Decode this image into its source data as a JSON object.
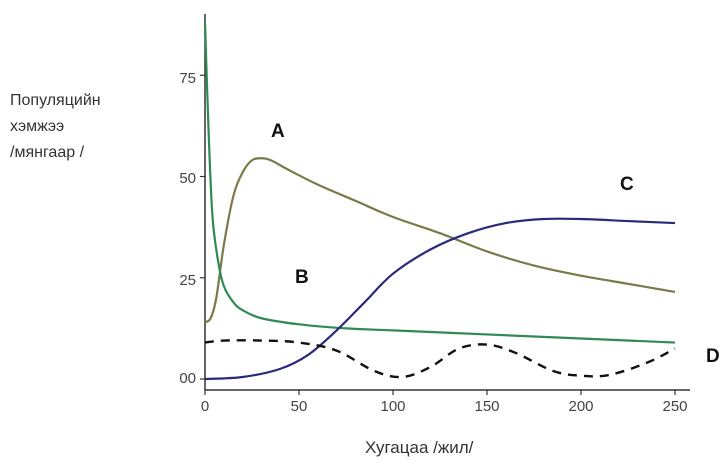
{
  "chart_data": {
    "type": "line",
    "title": "",
    "ylabel_lines": [
      "Популяцийн",
      "хэмжээ",
      "/мянгаар /"
    ],
    "xlabel": "Хугацаа /жил/",
    "xlim": [
      0,
      250
    ],
    "ylim": [
      0,
      90
    ],
    "x_ticks": [
      "0",
      "50",
      "100",
      "150",
      "200",
      "250"
    ],
    "y_ticks": [
      {
        "value": 0,
        "label": "00"
      },
      {
        "value": 25,
        "label": "25"
      },
      {
        "value": 50,
        "label": "50"
      },
      {
        "value": 75,
        "label": "75"
      }
    ],
    "grid": false,
    "series": [
      {
        "name": "A",
        "color": "#7a7a4a",
        "dash": false,
        "points": [
          [
            0,
            14
          ],
          [
            3,
            15
          ],
          [
            6,
            20
          ],
          [
            10,
            33
          ],
          [
            15,
            45
          ],
          [
            20,
            51
          ],
          [
            25,
            54
          ],
          [
            30,
            54.5
          ],
          [
            35,
            54
          ],
          [
            45,
            51.5
          ],
          [
            60,
            48
          ],
          [
            80,
            44
          ],
          [
            100,
            40
          ],
          [
            125,
            36
          ],
          [
            150,
            31.5
          ],
          [
            175,
            28
          ],
          [
            200,
            25.5
          ],
          [
            225,
            23.5
          ],
          [
            250,
            21.5
          ]
        ]
      },
      {
        "name": "B",
        "color": "#2f8a55",
        "dash": false,
        "points": [
          [
            0,
            88
          ],
          [
            2,
            60
          ],
          [
            4,
            40
          ],
          [
            7,
            29
          ],
          [
            10,
            23
          ],
          [
            15,
            19
          ],
          [
            20,
            17
          ],
          [
            30,
            15
          ],
          [
            50,
            13.5
          ],
          [
            75,
            12.5
          ],
          [
            100,
            12
          ],
          [
            150,
            11
          ],
          [
            200,
            10
          ],
          [
            250,
            9
          ]
        ]
      },
      {
        "name": "C",
        "color": "#2b2a7a",
        "dash": false,
        "points": [
          [
            0,
            0
          ],
          [
            20,
            0.5
          ],
          [
            40,
            2.5
          ],
          [
            55,
            6
          ],
          [
            70,
            12
          ],
          [
            85,
            19
          ],
          [
            100,
            26
          ],
          [
            120,
            32
          ],
          [
            140,
            36
          ],
          [
            160,
            38.5
          ],
          [
            180,
            39.5
          ],
          [
            200,
            39.5
          ],
          [
            225,
            39
          ],
          [
            250,
            38.5
          ]
        ]
      },
      {
        "name": "D",
        "color": "#111111",
        "dash": true,
        "points": [
          [
            0,
            9
          ],
          [
            10,
            9.5
          ],
          [
            30,
            9.5
          ],
          [
            50,
            9
          ],
          [
            70,
            7
          ],
          [
            90,
            2
          ],
          [
            105,
            0.5
          ],
          [
            120,
            3
          ],
          [
            135,
            7.5
          ],
          [
            150,
            8.5
          ],
          [
            165,
            6.5
          ],
          [
            185,
            2
          ],
          [
            200,
            0.8
          ],
          [
            215,
            1
          ],
          [
            235,
            4
          ],
          [
            250,
            7.5
          ]
        ]
      }
    ],
    "curve_labels": [
      {
        "text": "A"
      },
      {
        "text": "B"
      },
      {
        "text": "C"
      },
      {
        "text": "D"
      }
    ]
  }
}
